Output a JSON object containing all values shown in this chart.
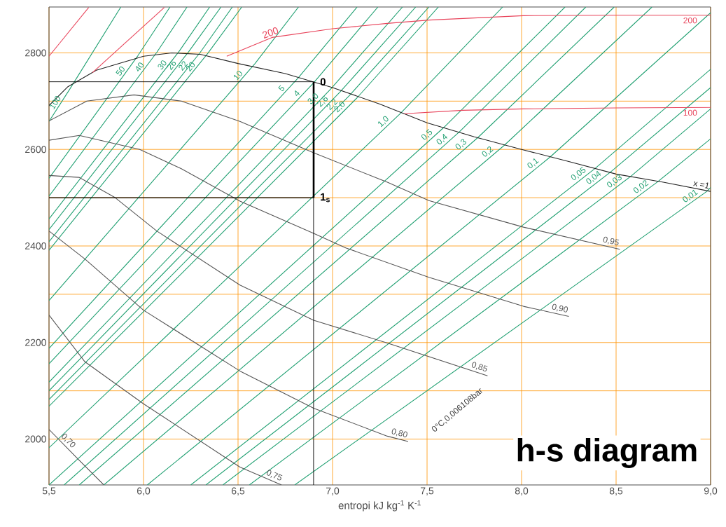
{
  "chart_data": {
    "type": "line",
    "title": "h-s diagram",
    "xlabel": "entropi kJ kg$^{-1}$ K$^{-1}$",
    "xlim": [
      5.5,
      9.0
    ],
    "ylim": [
      1905,
      2895
    ],
    "xticks": [
      {
        "value": 5.5,
        "label": "5,5"
      },
      {
        "value": 6.0,
        "label": "6,0"
      },
      {
        "value": 6.5,
        "label": "6,5"
      },
      {
        "value": 7.0,
        "label": "7,0"
      },
      {
        "value": 7.5,
        "label": "7,5"
      },
      {
        "value": 8.0,
        "label": "8,0"
      },
      {
        "value": 8.5,
        "label": "8,5"
      },
      {
        "value": 9.0,
        "label": "9,0"
      }
    ],
    "yticks": [
      2000,
      {
        "value": 2100,
        "label": null
      },
      2200,
      {
        "value": 2300,
        "label": null
      },
      2400,
      {
        "value": 2500,
        "label": null
      },
      2600,
      {
        "value": 2700,
        "label": null
      },
      2800
    ],
    "grid": true,
    "annotations": [
      "0°C,0,006108bar",
      "200",
      "0",
      "1$_{s}$"
    ],
    "series": [
      {
        "name": "100",
        "color": "#21a072",
        "x": [
          5.5,
          5.61,
          5.88
        ],
        "values": [
          2658,
          2725,
          2895
        ]
      },
      {
        "name": "50",
        "color": "#21a072",
        "x": [
          5.5,
          5.97,
          6.14
        ],
        "values": [
          2540,
          2794,
          2895
        ]
      },
      {
        "name": "40",
        "color": "#21a072",
        "x": [
          5.5,
          6.07,
          6.23
        ],
        "values": [
          2503,
          2801,
          2895
        ]
      },
      {
        "name": "30",
        "color": "#21a072",
        "x": [
          5.5,
          6.19,
          6.35
        ],
        "values": [
          2456,
          2804,
          2895
        ]
      },
      {
        "name": "26",
        "color": "#21a072",
        "x": [
          5.5,
          6.24,
          6.41
        ],
        "values": [
          2434,
          2803,
          2895
        ]
      },
      {
        "name": "22",
        "color": "#21a072",
        "x": [
          5.5,
          6.3,
          6.47
        ],
        "values": [
          2409,
          2801,
          2895
        ]
      },
      {
        "name": "20",
        "color": "#21a072",
        "x": [
          5.5,
          6.34,
          6.52
        ],
        "values": [
          2391,
          2799,
          2895
        ]
      },
      {
        "name": "10",
        "color": "#21a072",
        "x": [
          5.5,
          6.59,
          6.82
        ],
        "values": [
          2287,
          2778,
          2895
        ]
      },
      {
        "name": "5",
        "color": "#21a072",
        "x": [
          5.5,
          6.82,
          7.13
        ],
        "values": [
          2188,
          2749,
          2895
        ]
      },
      {
        "name": "4",
        "color": "#21a072",
        "x": [
          5.5,
          6.9,
          7.24
        ],
        "values": [
          2156,
          2738,
          2895
        ]
      },
      {
        "name": "3,0",
        "color": "#21a072",
        "x": [
          5.5,
          6.99,
          7.37
        ],
        "values": [
          2118,
          2725,
          2895
        ]
      },
      {
        "name": "2,6",
        "color": "#21a072",
        "x": [
          5.5,
          7.04,
          7.44
        ],
        "values": [
          2100,
          2719,
          2895
        ]
      },
      {
        "name": "2,2",
        "color": "#21a072",
        "x": [
          5.5,
          7.09,
          7.51
        ],
        "values": [
          2082,
          2712,
          2895
        ]
      },
      {
        "name": "2,0",
        "color": "#21a072",
        "x": [
          5.5,
          7.13,
          7.56
        ],
        "values": [
          2068,
          2707,
          2895
        ]
      },
      {
        "name": "1,0",
        "color": "#21a072",
        "x": [
          5.5,
          7.36,
          7.9
        ],
        "values": [
          1982,
          2675,
          2895
        ]
      },
      {
        "name": "0,5",
        "color": "#21a072",
        "x": [
          5.5,
          7.59,
          8.23
        ],
        "values": [
          1905,
          2646,
          2895
        ]
      },
      {
        "name": "0,4",
        "color": "#21a072",
        "x": [
          5.58,
          7.67,
          8.34
        ],
        "values": [
          1905,
          2636,
          2895
        ]
      },
      {
        "name": "0,3",
        "color": "#21a072",
        "x": [
          5.66,
          7.77,
          8.49
        ],
        "values": [
          1905,
          2625,
          2895
        ]
      },
      {
        "name": "0,2",
        "color": "#21a072",
        "x": [
          5.79,
          7.91,
          8.69
        ],
        "values": [
          1905,
          2609,
          2895
        ]
      },
      {
        "name": "0,1",
        "color": "#21a072",
        "x": [
          6.02,
          8.15,
          9.0
        ],
        "values": [
          1905,
          2584,
          2883
        ]
      },
      {
        "name": "0,05",
        "color": "#21a072",
        "x": [
          6.25,
          8.39,
          9.0
        ],
        "values": [
          1905,
          2561,
          2766
        ]
      },
      {
        "name": "0,04",
        "color": "#21a072",
        "x": [
          6.33,
          8.47,
          9.0
        ],
        "values": [
          1905,
          2553,
          2728
        ]
      },
      {
        "name": "0,03",
        "color": "#21a072",
        "x": [
          6.42,
          8.58,
          9.0
        ],
        "values": [
          1905,
          2545,
          2684
        ]
      },
      {
        "name": "0,02",
        "color": "#21a072",
        "x": [
          6.56,
          8.72,
          9.0
        ],
        "values": [
          1905,
          2533,
          2622
        ]
      },
      {
        "name": "0,01",
        "color": "#21a072",
        "x": [
          6.8,
          8.98,
          9.0
        ],
        "values": [
          1905,
          2513,
          2521
        ]
      },
      {
        "name": "0,95",
        "color": "#555555",
        "x": [
          5.5,
          5.7,
          5.95,
          6.2,
          6.51,
          6.9,
          7.29,
          7.51,
          8.01,
          8.52
        ],
        "values": [
          2659,
          2700,
          2713,
          2700,
          2658,
          2593,
          2532,
          2494,
          2439,
          2393
        ]
      },
      {
        "name": "0,90",
        "color": "#555555",
        "x": [
          5.5,
          5.66,
          5.98,
          6.2,
          6.51,
          6.9,
          7.07,
          7.51,
          8.01,
          8.25
        ],
        "values": [
          2619,
          2629,
          2600,
          2560,
          2493,
          2426,
          2396,
          2335,
          2275,
          2254
        ]
      },
      {
        "name": "0,85",
        "color": "#555555",
        "x": [
          5.5,
          5.66,
          5.85,
          6.07,
          6.51,
          6.9,
          7.29,
          7.82
        ],
        "values": [
          2546,
          2542,
          2500,
          2431,
          2319,
          2246,
          2199,
          2131
        ]
      },
      {
        "name": "0,80",
        "color": "#555555",
        "x": [
          5.5,
          5.69,
          6.0,
          6.51,
          6.9,
          7.29,
          7.4
        ],
        "values": [
          2431,
          2373,
          2267,
          2141,
          2064,
          2006,
          1995
        ]
      },
      {
        "name": "0,75",
        "color": "#555555",
        "x": [
          5.5,
          5.69,
          6.0,
          6.51,
          6.73
        ],
        "values": [
          2257,
          2160,
          2073,
          1942,
          1905
        ]
      },
      {
        "name": "0,70",
        "color": "#555555",
        "x": [
          5.5,
          5.65,
          5.79
        ],
        "values": [
          2020,
          1960,
          1905
        ]
      },
      {
        "name": "x =1",
        "color": "#222222",
        "x": [
          5.5,
          5.6,
          5.75,
          6.0,
          6.15,
          6.3,
          6.5,
          6.75,
          7.0,
          7.25,
          7.5,
          7.75,
          8.0,
          8.25,
          8.5,
          8.75,
          9.0
        ],
        "values": [
          2691,
          2730,
          2764,
          2793,
          2800,
          2797,
          2778,
          2757,
          2728,
          2694,
          2655,
          2626,
          2600,
          2575,
          2549,
          2532,
          2513
        ]
      },
      {
        "name": "200",
        "color": "#e8435a",
        "x": [
          6.44,
          6.68,
          7.0,
          7.29,
          7.51,
          8.01,
          8.5,
          9.0
        ],
        "values": [
          2793,
          2832,
          2850,
          2861,
          2868,
          2877,
          2878,
          2878
        ]
      },
      {
        "name": "100",
        "color": "#e8435a",
        "x": [
          7.38,
          7.69,
          8.01,
          8.5,
          9.0
        ],
        "values": [
          2674,
          2681,
          2684,
          2686,
          2687
        ]
      },
      {
        "color": "#e8435a",
        "x": [
          5.5,
          5.71
        ],
        "values": [
          2793,
          2894
        ]
      },
      {
        "color": "#e8435a",
        "x": [
          5.73,
          6.11
        ],
        "values": [
          2759,
          2894
        ]
      },
      {
        "color": "#000000",
        "x": [
          5.5,
          6.9
        ],
        "values": [
          2740,
          2740
        ]
      },
      {
        "color": "#000000",
        "x": [
          5.5,
          6.9
        ],
        "values": [
          2500,
          2500
        ]
      },
      {
        "color": "#000000",
        "x": [
          6.9,
          6.9
        ],
        "values": [
          2500,
          1905
        ]
      },
      {
        "color": "#000000",
        "x": [
          6.9,
          6.9
        ],
        "values": [
          2740,
          2500
        ]
      }
    ]
  }
}
